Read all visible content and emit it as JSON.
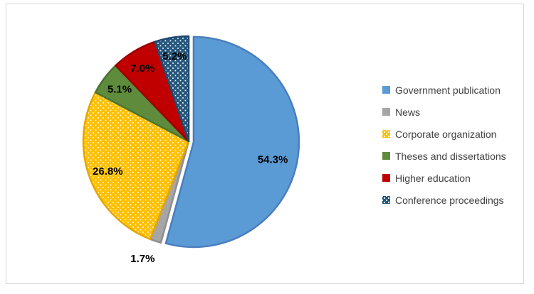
{
  "frame": {
    "background": "#FFFFFF",
    "border_color": "#D7D7D7"
  },
  "chart_data": {
    "type": "pie",
    "title": "",
    "legend_position": "right",
    "start_angle_deg": 0,
    "direction": "clockwise",
    "label_color": "#000000",
    "legend_text_color": "#404040",
    "pattern_dot_color": "#FFFFFF",
    "slices": [
      {
        "label": "Government publication",
        "value": 54.3,
        "display": "54.3%",
        "color": "#5B9BD5",
        "edge": "#4A7EBD",
        "pattern": "none",
        "explode": true,
        "label_placement": "inside",
        "label_radius_factor": 0.77,
        "label_angle_offset_deg": 5
      },
      {
        "label": "News",
        "value": 1.7,
        "display": "1.7%",
        "color": "#A6A6A6",
        "edge": "#8F8F8F",
        "pattern": "none",
        "explode": false,
        "label_placement": "outside",
        "label_radius_factor": 1.2,
        "label_angle_offset_deg": 3
      },
      {
        "label": "Corporate organization",
        "value": 26.8,
        "display": "26.8%",
        "color": "#FFC000",
        "edge": "#E3A600",
        "pattern": "dots",
        "explode": false,
        "label_placement": "inside",
        "label_radius_factor": 0.82,
        "label_angle_offset_deg": 0
      },
      {
        "label": "Theses and dissertations",
        "value": 5.1,
        "display": "5.1%",
        "color": "#5E8B3C",
        "edge": "#4C7430",
        "pattern": "none",
        "explode": false,
        "label_placement": "inside",
        "label_radius_factor": 0.82,
        "label_angle_offset_deg": 0
      },
      {
        "label": "Higher education",
        "value": 7.0,
        "display": "7.0%",
        "color": "#C00000",
        "edge": "#9E0000",
        "pattern": "none",
        "explode": false,
        "label_placement": "inside",
        "label_radius_factor": 0.82,
        "label_angle_offset_deg": -1
      },
      {
        "label": "Conference proceedings",
        "value": 5.2,
        "display": "5.2%",
        "color": "#26587E",
        "edge": "#1F4A70",
        "pattern": "dots",
        "explode": false,
        "label_placement": "inside",
        "label_radius_factor": 0.82,
        "label_angle_offset_deg": 0
      }
    ]
  }
}
